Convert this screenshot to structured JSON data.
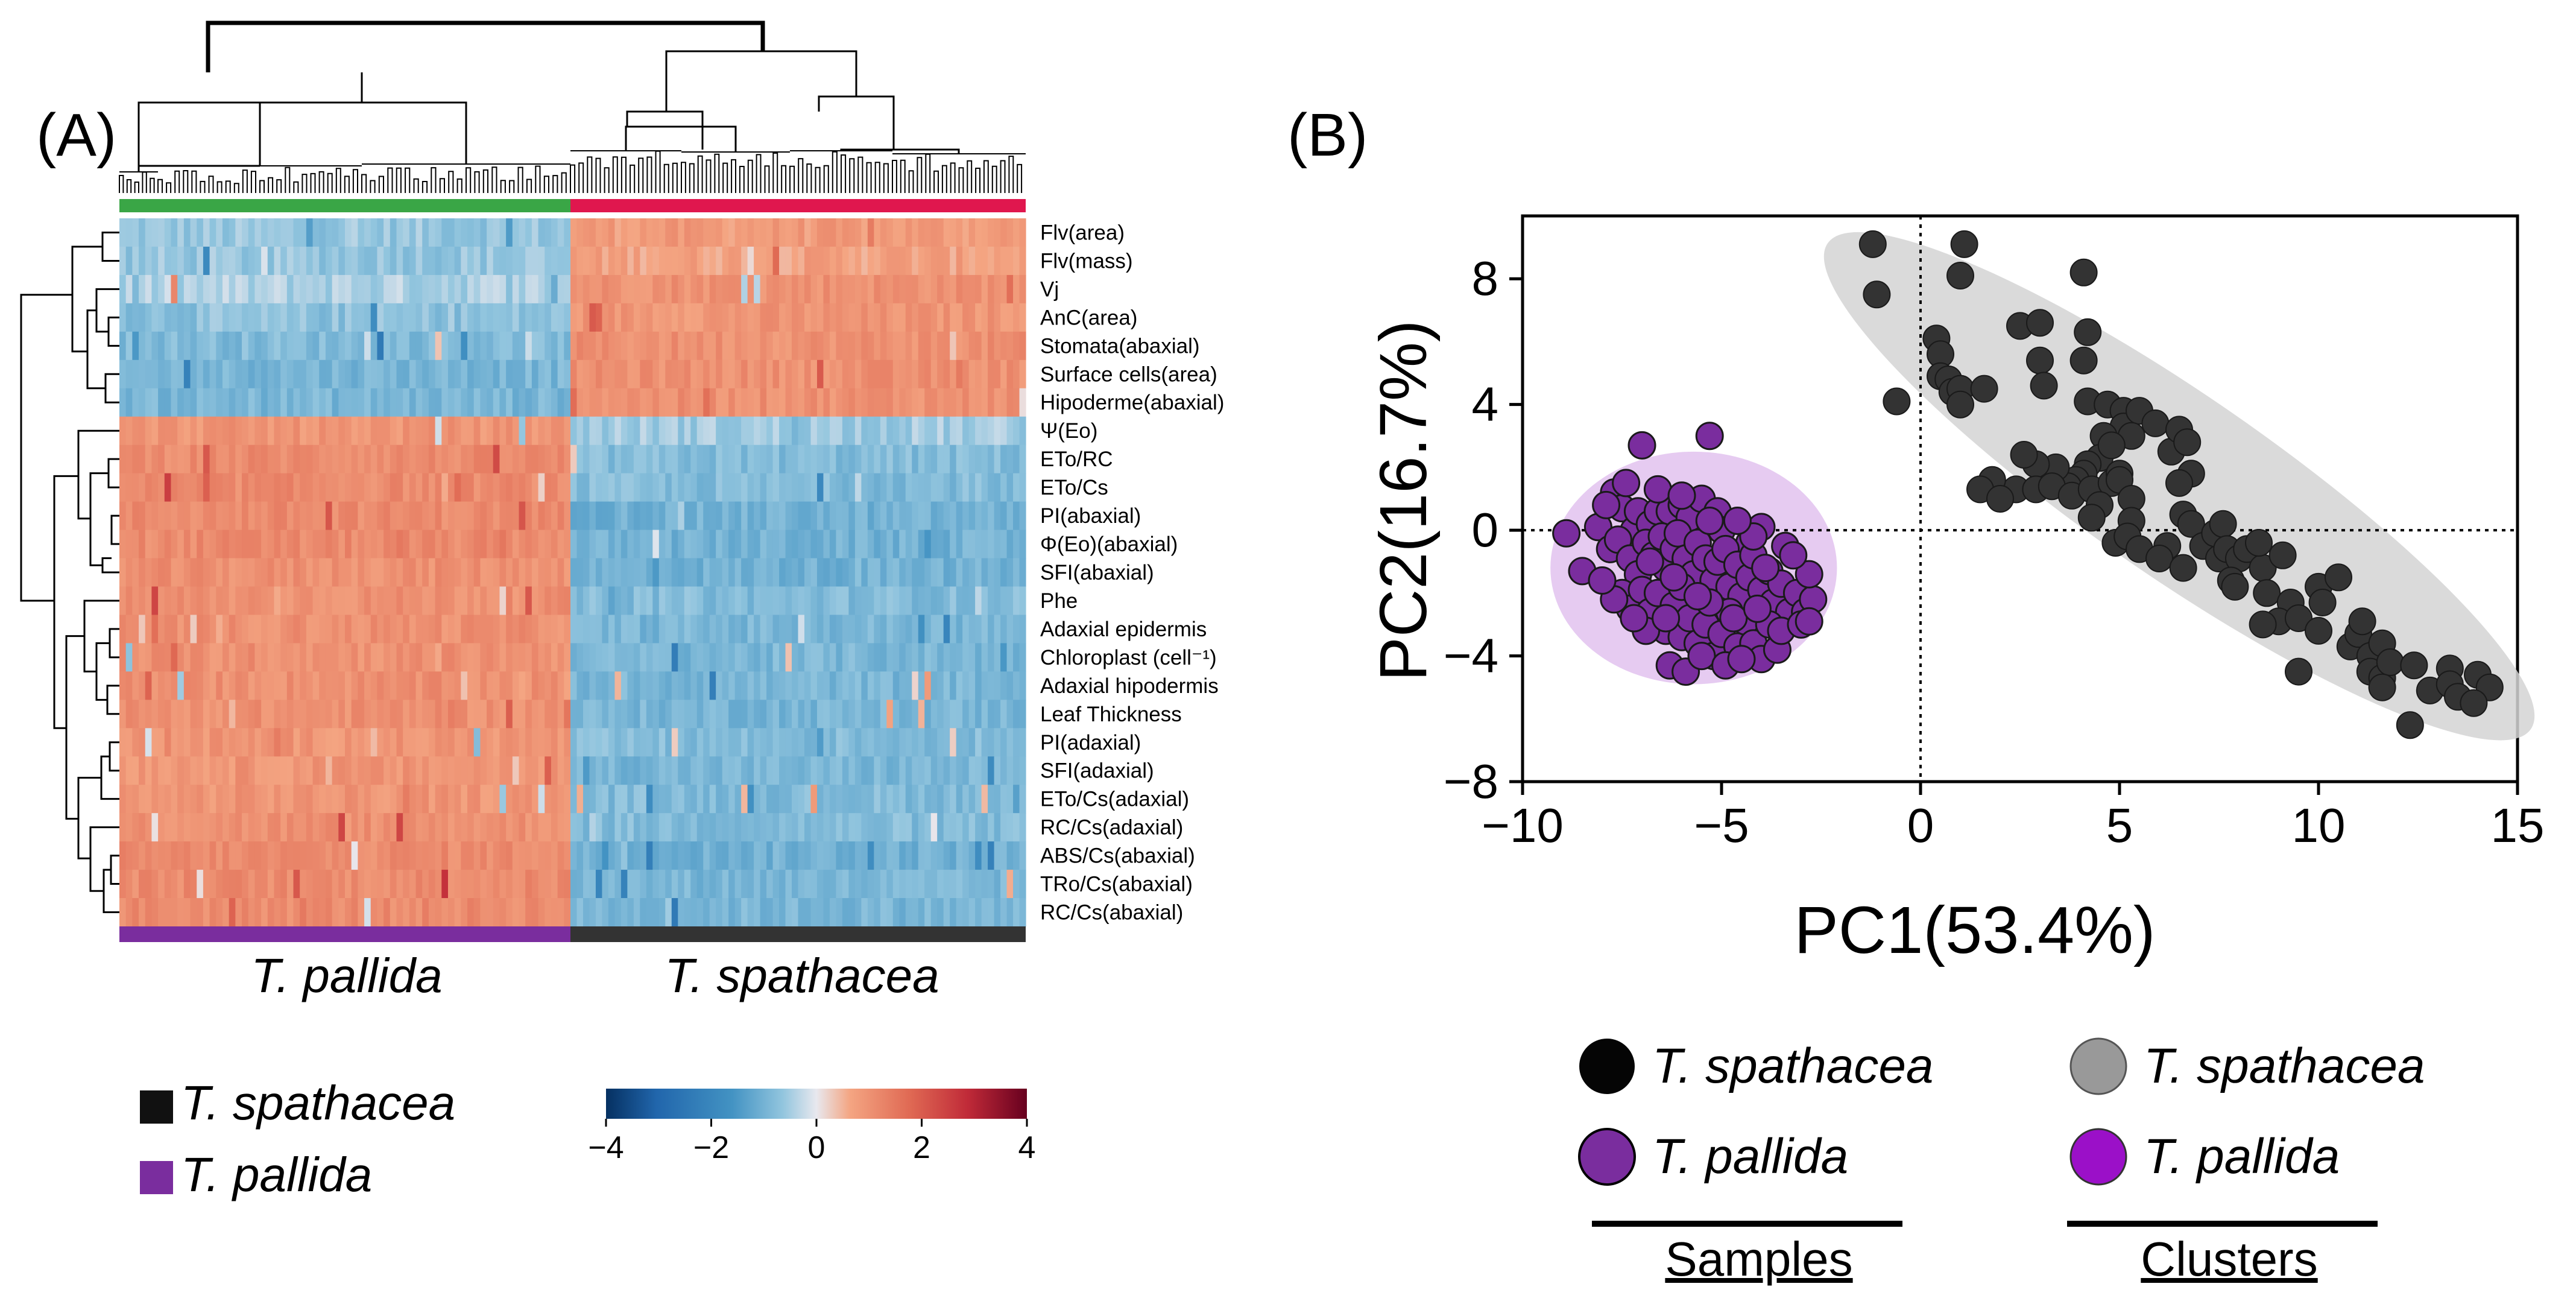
{
  "panel_a": {
    "label": "(A)",
    "rows": [
      "Flv(area)",
      "Flv(mass)",
      "Vj",
      "AnC(area)",
      "Stomata(abaxial)",
      "Surface cells(area)",
      "Hipoderme(abaxial)",
      "Ψ(Eo)",
      "ETo/RC",
      "ETo/Cs",
      "PI(abaxial)",
      "Φ(Eo)(abaxial)",
      "SFI(abaxial)",
      "Phe",
      "Adaxial epidermis",
      "Chloroplast (cell⁻¹)",
      "Adaxial hipodermis",
      "Leaf Thickness",
      "PI(adaxial)",
      "SFI(adaxial)",
      "ETo/Cs(adaxial)",
      "RC/Cs(adaxial)",
      "ABS/Cs(abaxial)",
      "TRo/Cs(abaxial)",
      "RC/Cs(abaxial)"
    ],
    "group_labels": {
      "left": "T. pallida",
      "right": "T. spathacea"
    },
    "legend": [
      {
        "name": "T. spathacea",
        "color": "#111111"
      },
      {
        "name": "T. pallida",
        "color": "#7a2d9e"
      }
    ],
    "colorbar": {
      "ticks": [
        "−4",
        "−2",
        "0",
        "2",
        "4"
      ]
    },
    "colors": {
      "cluster_left": "#3aa646",
      "cluster_right": "#e0174e",
      "bottom_left": "#7a2d9e",
      "bottom_right": "#333333"
    }
  },
  "chart_data": [
    {
      "type": "heatmap",
      "title": "",
      "rows": [
        "Flv(area)",
        "Flv(mass)",
        "Vj",
        "AnC(area)",
        "Stomata(abaxial)",
        "Surface cells(area)",
        "Hipoderme(abaxial)",
        "Ψ(Eo)",
        "ETo/RC",
        "ETo/Cs",
        "PI(abaxial)",
        "Φ(Eo)(abaxial)",
        "SFI(abaxial)",
        "Phe",
        "Adaxial epidermis",
        "Chloroplast (cell⁻¹)",
        "Adaxial hipodermis",
        "Leaf Thickness",
        "PI(adaxial)",
        "SFI(adaxial)",
        "ETo/Cs(adaxial)",
        "RC/Cs(adaxial)",
        "ABS/Cs(abaxial)",
        "TRo/Cs(abaxial)",
        "RC/Cs(abaxial)"
      ],
      "column_groups": [
        "T. pallida",
        "T. spathacea"
      ],
      "group_mean_z": {
        "T. pallida": [
          -0.6,
          -0.6,
          -0.4,
          -0.7,
          -0.8,
          -0.9,
          -0.9,
          0.9,
          1.1,
          1.1,
          1.1,
          1.1,
          1.0,
          1.0,
          1.0,
          1.0,
          1.0,
          1.0,
          0.9,
          0.9,
          0.9,
          1.0,
          1.1,
          1.1,
          1.1
        ],
        "T. spathacea": [
          0.8,
          0.7,
          1.0,
          0.9,
          1.0,
          1.0,
          1.0,
          -0.5,
          -0.8,
          -0.8,
          -1.0,
          -1.0,
          -1.0,
          -0.8,
          -0.9,
          -0.9,
          -0.9,
          -0.9,
          -0.8,
          -0.9,
          -0.8,
          -0.8,
          -1.0,
          -0.9,
          -0.9
        ]
      },
      "color_range": [
        -4,
        4
      ],
      "colorbar_ticks": [
        -4,
        -2,
        0,
        2,
        4
      ]
    },
    {
      "type": "scatter",
      "panel_label": "(B)",
      "xlabel": "PC1(53.4%)",
      "ylabel": "PC2(16.7%)",
      "xlim": [
        -10,
        15
      ],
      "ylim": [
        -8,
        10
      ],
      "xticks": [
        -10,
        -5,
        0,
        5,
        10,
        15
      ],
      "yticks": [
        -8,
        -4,
        0,
        4,
        8
      ],
      "xtick_labels": [
        "−10",
        "−5",
        "0",
        "5",
        "10",
        "15"
      ],
      "ytick_labels": [
        "−8",
        "−4",
        "0",
        "4",
        "8"
      ],
      "series": [
        {
          "name": "T. spathacea",
          "color": "#333333",
          "points": [
            [
              -1.2,
              9.1
            ],
            [
              -1.1,
              7.5
            ],
            [
              -0.6,
              4.1
            ],
            [
              1.0,
              8.1
            ],
            [
              1.1,
              9.1
            ],
            [
              4.1,
              8.2
            ],
            [
              0.4,
              6.1
            ],
            [
              0.5,
              5.6
            ],
            [
              0.5,
              4.9
            ],
            [
              0.7,
              4.8
            ],
            [
              0.8,
              4.4
            ],
            [
              1.0,
              4.5
            ],
            [
              1.0,
              4.0
            ],
            [
              1.6,
              4.5
            ],
            [
              2.5,
              6.5
            ],
            [
              3.0,
              6.6
            ],
            [
              3.0,
              5.4
            ],
            [
              3.1,
              4.6
            ],
            [
              4.2,
              6.3
            ],
            [
              4.1,
              5.4
            ],
            [
              4.2,
              4.1
            ],
            [
              4.7,
              4.0
            ],
            [
              5.1,
              3.8
            ],
            [
              5.1,
              3.3
            ],
            [
              5.5,
              3.8
            ],
            [
              5.9,
              3.4
            ],
            [
              5.3,
              3.0
            ],
            [
              4.6,
              3.0
            ],
            [
              4.5,
              2.3
            ],
            [
              4.8,
              2.7
            ],
            [
              4.2,
              2.1
            ],
            [
              4.1,
              1.8
            ],
            [
              3.9,
              1.6
            ],
            [
              3.7,
              1.4
            ],
            [
              3.4,
              2.0
            ],
            [
              2.9,
              2.1
            ],
            [
              2.6,
              2.4
            ],
            [
              2.4,
              1.3
            ],
            [
              1.8,
              1.6
            ],
            [
              1.5,
              1.3
            ],
            [
              2.0,
              1.0
            ],
            [
              2.9,
              1.3
            ],
            [
              3.3,
              1.4
            ],
            [
              3.8,
              1.1
            ],
            [
              4.3,
              1.3
            ],
            [
              4.8,
              1.5
            ],
            [
              5.0,
              1.8
            ],
            [
              5.0,
              1.6
            ],
            [
              5.3,
              1.0
            ],
            [
              5.3,
              0.3
            ],
            [
              4.5,
              0.8
            ],
            [
              4.3,
              0.4
            ],
            [
              4.9,
              -0.4
            ],
            [
              5.2,
              -0.2
            ],
            [
              5.5,
              -0.6
            ],
            [
              6.3,
              2.5
            ],
            [
              6.5,
              3.2
            ],
            [
              6.7,
              2.8
            ],
            [
              6.8,
              1.8
            ],
            [
              6.5,
              1.5
            ],
            [
              6.6,
              0.5
            ],
            [
              6.8,
              0.2
            ],
            [
              6.2,
              -0.5
            ],
            [
              6.0,
              -0.9
            ],
            [
              6.6,
              -1.2
            ],
            [
              7.1,
              -0.5
            ],
            [
              7.5,
              -0.9
            ],
            [
              7.4,
              -0.1
            ],
            [
              7.6,
              0.2
            ],
            [
              7.7,
              -0.6
            ],
            [
              8.0,
              -0.9
            ],
            [
              7.8,
              -1.6
            ],
            [
              7.9,
              -1.8
            ],
            [
              8.2,
              -0.6
            ],
            [
              8.6,
              -1.2
            ],
            [
              8.5,
              -0.4
            ],
            [
              8.7,
              -2.0
            ],
            [
              9.1,
              -0.8
            ],
            [
              9.3,
              -2.3
            ],
            [
              9.0,
              -2.9
            ],
            [
              8.6,
              -3.0
            ],
            [
              9.5,
              -2.8
            ],
            [
              10.0,
              -1.8
            ],
            [
              10.1,
              -2.3
            ],
            [
              10.5,
              -1.5
            ],
            [
              10.0,
              -3.2
            ],
            [
              10.8,
              -3.7
            ],
            [
              9.5,
              -4.5
            ],
            [
              11.0,
              -3.3
            ],
            [
              11.1,
              -2.9
            ],
            [
              11.3,
              -4.0
            ],
            [
              11.6,
              -3.6
            ],
            [
              11.3,
              -4.5
            ],
            [
              11.6,
              -4.7
            ],
            [
              11.8,
              -4.2
            ],
            [
              11.6,
              -5.0
            ],
            [
              12.4,
              -4.3
            ],
            [
              12.8,
              -5.1
            ],
            [
              12.3,
              -6.2
            ],
            [
              13.3,
              -4.4
            ],
            [
              13.3,
              -4.9
            ],
            [
              13.5,
              -5.3
            ],
            [
              14.0,
              -4.6
            ],
            [
              14.3,
              -5.0
            ],
            [
              13.9,
              -5.5
            ]
          ]
        },
        {
          "name": "T. pallida",
          "color": "#7a2d9e",
          "points": [
            [
              -8.9,
              -0.1
            ],
            [
              -8.5,
              -1.3
            ],
            [
              -7.7,
              1.2
            ],
            [
              -7.5,
              0.7
            ],
            [
              -7.2,
              0.0
            ],
            [
              -7.1,
              0.6
            ],
            [
              -7.0,
              2.7
            ],
            [
              -6.8,
              0.2
            ],
            [
              -6.6,
              0.6
            ],
            [
              -6.3,
              0.6
            ],
            [
              -6.0,
              0.8
            ],
            [
              -5.8,
              0.4
            ],
            [
              -5.5,
              1.0
            ],
            [
              -5.3,
              3.0
            ],
            [
              -5.1,
              0.6
            ],
            [
              -5.0,
              0.0
            ],
            [
              -4.3,
              -0.4
            ],
            [
              -4.0,
              0.1
            ],
            [
              -3.4,
              -0.5
            ],
            [
              -8.1,
              0.1
            ],
            [
              -7.8,
              -0.6
            ],
            [
              -7.6,
              -0.3
            ],
            [
              -7.3,
              -0.9
            ],
            [
              -7.1,
              -1.4
            ],
            [
              -6.9,
              -0.4
            ],
            [
              -6.7,
              -0.8
            ],
            [
              -6.5,
              -0.2
            ],
            [
              -6.4,
              -1.2
            ],
            [
              -6.2,
              -0.6
            ],
            [
              -6.1,
              -0.1
            ],
            [
              -5.9,
              -0.9
            ],
            [
              -5.7,
              -1.4
            ],
            [
              -5.6,
              -0.4
            ],
            [
              -5.4,
              -0.9
            ],
            [
              -5.2,
              -1.6
            ],
            [
              -5.1,
              -1.0
            ],
            [
              -4.9,
              -0.6
            ],
            [
              -4.8,
              -1.8
            ],
            [
              -4.6,
              -1.1
            ],
            [
              -4.5,
              -2.1
            ],
            [
              -4.3,
              -1.5
            ],
            [
              -4.2,
              -0.8
            ],
            [
              -4.0,
              -1.9
            ],
            [
              -3.8,
              -1.3
            ],
            [
              -3.7,
              -2.3
            ],
            [
              -3.5,
              -1.7
            ],
            [
              -3.3,
              -2.6
            ],
            [
              -3.1,
              -2.0
            ],
            [
              -2.9,
              -2.6
            ],
            [
              -2.7,
              -2.2
            ],
            [
              -2.8,
              -1.4
            ],
            [
              -7.5,
              -2.0
            ],
            [
              -7.3,
              -2.5
            ],
            [
              -7.0,
              -1.9
            ],
            [
              -6.8,
              -2.6
            ],
            [
              -6.6,
              -2.0
            ],
            [
              -6.4,
              -3.2
            ],
            [
              -6.2,
              -2.4
            ],
            [
              -6.0,
              -3.4
            ],
            [
              -5.8,
              -2.8
            ],
            [
              -5.6,
              -3.6
            ],
            [
              -5.4,
              -3.0
            ],
            [
              -5.2,
              -4.0
            ],
            [
              -5.0,
              -3.3
            ],
            [
              -4.8,
              -2.6
            ],
            [
              -4.6,
              -3.7
            ],
            [
              -4.4,
              -2.9
            ],
            [
              -4.2,
              -3.6
            ],
            [
              -4.0,
              -4.1
            ],
            [
              -3.8,
              -3.0
            ],
            [
              -3.6,
              -3.8
            ],
            [
              -6.3,
              -4.3
            ],
            [
              -5.9,
              -4.5
            ],
            [
              -5.5,
              -4.0
            ],
            [
              -4.9,
              -4.3
            ],
            [
              -4.5,
              -4.1
            ],
            [
              -6.9,
              -3.2
            ],
            [
              -7.7,
              -2.2
            ],
            [
              -8.0,
              -1.6
            ],
            [
              -6.0,
              -1.8
            ],
            [
              -5.3,
              -2.3
            ],
            [
              -4.7,
              -2.8
            ],
            [
              -4.1,
              -2.5
            ],
            [
              -3.5,
              -3.2
            ],
            [
              -3.0,
              -3.0
            ],
            [
              -6.8,
              -1.0
            ],
            [
              -6.2,
              -1.5
            ],
            [
              -5.6,
              -2.1
            ],
            [
              -7.9,
              0.8
            ],
            [
              -7.4,
              1.5
            ],
            [
              -6.6,
              1.3
            ],
            [
              -6.0,
              1.1
            ],
            [
              -4.2,
              -0.2
            ],
            [
              -3.9,
              -1.2
            ],
            [
              -2.8,
              -2.9
            ],
            [
              -3.2,
              -0.8
            ],
            [
              -4.6,
              0.3
            ],
            [
              -5.3,
              0.3
            ],
            [
              -6.4,
              -2.8
            ],
            [
              -7.2,
              -2.8
            ]
          ]
        }
      ],
      "clusters": [
        {
          "name": "T. spathacea",
          "color": "#bbbbbb"
        },
        {
          "name": "T. pallida",
          "color": "#9b10c8"
        }
      ],
      "reference_lines": {
        "x": 0,
        "y": 0
      }
    }
  ],
  "panel_b": {
    "label": "(B)",
    "legend_samples": {
      "title": "Samples",
      "items": [
        {
          "name": "T. spathacea",
          "color": "#050505"
        },
        {
          "name": "T. pallida",
          "color": "#7a2d9e"
        }
      ]
    },
    "legend_clusters": {
      "title": "Clusters",
      "items": [
        {
          "name": "T. spathacea",
          "color": "#999999"
        },
        {
          "name": "T. pallida",
          "color": "#9b10c8"
        }
      ]
    }
  }
}
